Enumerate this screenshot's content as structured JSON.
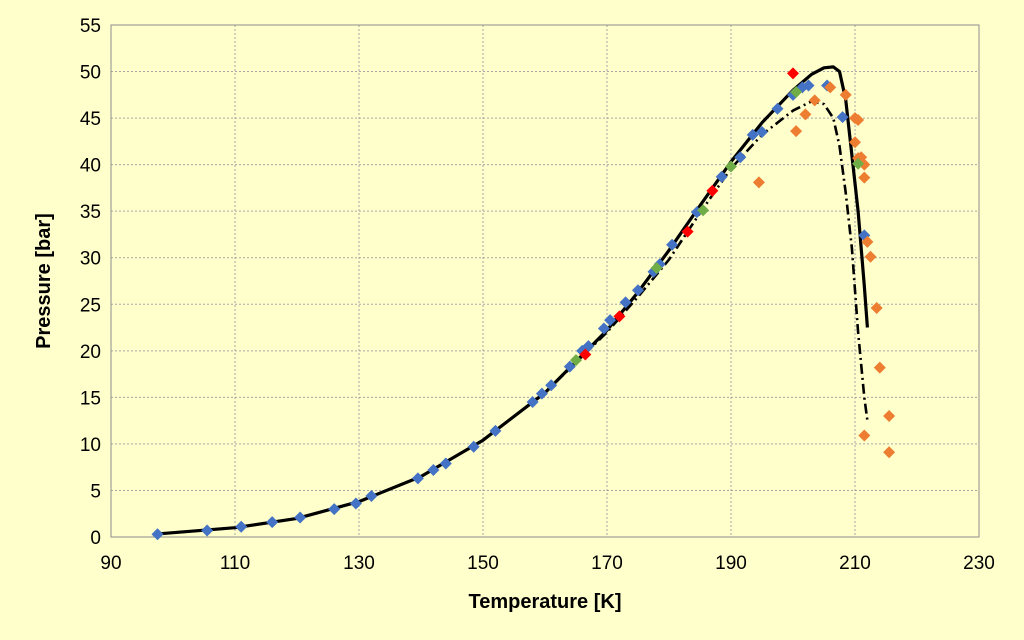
{
  "chart_data": {
    "type": "scatter",
    "title": "",
    "xlabel": "Temperature [K]",
    "ylabel": "Pressure  [bar]",
    "xlim": [
      90,
      230
    ],
    "ylim": [
      0,
      55
    ],
    "xticks": [
      90,
      110,
      130,
      150,
      170,
      190,
      210,
      230
    ],
    "yticks": [
      0,
      5,
      10,
      15,
      20,
      25,
      30,
      35,
      40,
      45,
      50,
      55
    ],
    "grid": true,
    "legend": "none",
    "colors": {
      "background": "#ffffcc",
      "blue": "#4472c4",
      "orange": "#ed7d31",
      "red": "#ff0000",
      "green": "#70ad47",
      "curve": "#000000"
    },
    "series": [
      {
        "marker": "diamond",
        "color": "#4472c4",
        "points": [
          [
            97.5,
            0.3
          ],
          [
            105.5,
            0.7
          ],
          [
            111,
            1.1
          ],
          [
            116,
            1.6
          ],
          [
            120.5,
            2.1
          ],
          [
            126,
            3.0
          ],
          [
            129.5,
            3.6
          ],
          [
            132,
            4.4
          ],
          [
            139.5,
            6.3
          ],
          [
            142,
            7.2
          ],
          [
            144,
            7.9
          ],
          [
            148.5,
            9.7
          ],
          [
            152,
            11.4
          ],
          [
            158,
            14.5
          ],
          [
            159.5,
            15.4
          ],
          [
            161,
            16.3
          ],
          [
            164,
            18.3
          ],
          [
            166,
            20.0
          ],
          [
            167,
            20.5
          ],
          [
            169.5,
            22.4
          ],
          [
            170.5,
            23.3
          ],
          [
            173,
            25.2
          ],
          [
            175,
            26.5
          ],
          [
            177.5,
            28.5
          ],
          [
            178.5,
            29.3
          ],
          [
            180.5,
            31.4
          ],
          [
            184.5,
            34.9
          ],
          [
            188.5,
            38.7
          ],
          [
            191.5,
            40.8
          ],
          [
            193.5,
            43.2
          ],
          [
            195,
            43.5
          ],
          [
            197.5,
            46.0
          ],
          [
            200,
            47.5
          ],
          [
            201.5,
            48.3
          ],
          [
            202.5,
            48.5
          ],
          [
            205.5,
            48.5
          ],
          [
            208,
            45.1
          ],
          [
            211.5,
            32.4
          ]
        ]
      },
      {
        "marker": "diamond",
        "color": "#ed7d31",
        "points": [
          [
            194.5,
            38.1
          ],
          [
            200.5,
            43.6
          ],
          [
            202,
            45.4
          ],
          [
            203.5,
            46.9
          ],
          [
            206,
            48.3
          ],
          [
            208.5,
            47.5
          ],
          [
            210,
            45.0
          ],
          [
            210.5,
            44.8
          ],
          [
            210,
            42.4
          ],
          [
            210.5,
            40.7
          ],
          [
            211,
            40.8
          ],
          [
            211.5,
            40.0
          ],
          [
            211.5,
            38.6
          ],
          [
            212,
            31.7
          ],
          [
            212.5,
            30.1
          ],
          [
            213.5,
            24.6
          ],
          [
            214,
            18.2
          ],
          [
            215.5,
            13.0
          ],
          [
            211.5,
            10.9
          ],
          [
            215.5,
            9.1
          ]
        ]
      },
      {
        "marker": "diamond",
        "color": "#ff0000",
        "points": [
          [
            166.5,
            19.6
          ],
          [
            172,
            23.7
          ],
          [
            183,
            32.8
          ],
          [
            187,
            37.2
          ],
          [
            200,
            49.8
          ]
        ]
      },
      {
        "marker": "diamond",
        "color": "#70ad47",
        "points": [
          [
            165,
            19.0
          ],
          [
            178,
            28.9
          ],
          [
            185.5,
            35.1
          ],
          [
            190,
            39.8
          ],
          [
            200.5,
            47.8
          ],
          [
            210.5,
            40.1
          ]
        ]
      }
    ],
    "curves": [
      {
        "style": "solid",
        "points": [
          [
            97,
            0.3
          ],
          [
            110,
            1.0
          ],
          [
            120,
            2.0
          ],
          [
            130,
            3.8
          ],
          [
            140,
            6.5
          ],
          [
            150,
            10.4
          ],
          [
            160,
            15.5
          ],
          [
            170,
            22.2
          ],
          [
            175,
            26.3
          ],
          [
            180,
            30.8
          ],
          [
            185,
            35.6
          ],
          [
            190,
            40.3
          ],
          [
            195,
            44.5
          ],
          [
            200,
            48.0
          ],
          [
            203,
            49.7
          ],
          [
            205,
            50.4
          ],
          [
            206.5,
            50.5
          ],
          [
            207.5,
            50.0
          ],
          [
            208.5,
            47.0
          ],
          [
            209.5,
            41.0
          ],
          [
            210.5,
            35.0
          ],
          [
            211.5,
            27.0
          ],
          [
            212,
            22.5
          ]
        ]
      },
      {
        "style": "dash-dot",
        "points": [
          [
            97,
            0.3
          ],
          [
            110,
            1.0
          ],
          [
            120,
            2.0
          ],
          [
            130,
            3.8
          ],
          [
            140,
            6.5
          ],
          [
            150,
            10.4
          ],
          [
            160,
            15.5
          ],
          [
            170,
            22.0
          ],
          [
            175,
            25.8
          ],
          [
            180,
            29.8
          ],
          [
            185,
            34.8
          ],
          [
            190,
            39.6
          ],
          [
            195,
            43.2
          ],
          [
            200,
            45.8
          ],
          [
            203,
            46.8
          ],
          [
            205,
            46.5
          ],
          [
            206.5,
            45.0
          ],
          [
            207.5,
            42.0
          ],
          [
            208.5,
            37.0
          ],
          [
            209.5,
            31.0
          ],
          [
            210.5,
            22.0
          ],
          [
            211.5,
            15.0
          ],
          [
            212,
            12.5
          ]
        ]
      }
    ]
  }
}
